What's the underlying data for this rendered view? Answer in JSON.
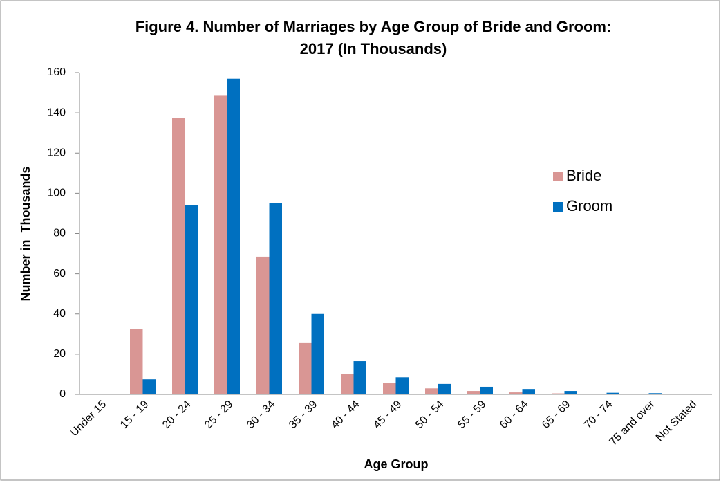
{
  "chart_data": {
    "type": "bar",
    "title": [
      "Figure 4. Number of Marriages by Age Group of Bride and Groom:",
      "2017 (In Thousands)"
    ],
    "xlabel": "Age Group",
    "ylabel": "Number in  Thousands",
    "categories": [
      "Under 15",
      "15 - 19",
      "20 - 24",
      "25 - 29",
      "30 - 34",
      "35 - 39",
      "40 - 44",
      "45 - 49",
      "50 - 54",
      "55 - 59",
      "60 - 64",
      "65 - 69",
      "70 - 74",
      "75 and over",
      "Not Stated"
    ],
    "series": [
      {
        "name": "Bride",
        "color": "#d99694",
        "values": [
          0,
          32.5,
          137.5,
          148.5,
          68.5,
          25.5,
          10,
          5.5,
          3,
          1.7,
          1,
          0.5,
          0.2,
          0.1,
          0
        ]
      },
      {
        "name": "Groom",
        "color": "#0070c0",
        "values": [
          0,
          7.5,
          94,
          157,
          95,
          40,
          16.5,
          8.5,
          5.2,
          3.8,
          2.7,
          1.7,
          0.8,
          0.6,
          0
        ]
      }
    ],
    "ylim": [
      0,
      160
    ],
    "yticks": [
      0,
      20,
      40,
      60,
      80,
      100,
      120,
      140,
      160
    ],
    "grid": false,
    "legend": "right"
  }
}
